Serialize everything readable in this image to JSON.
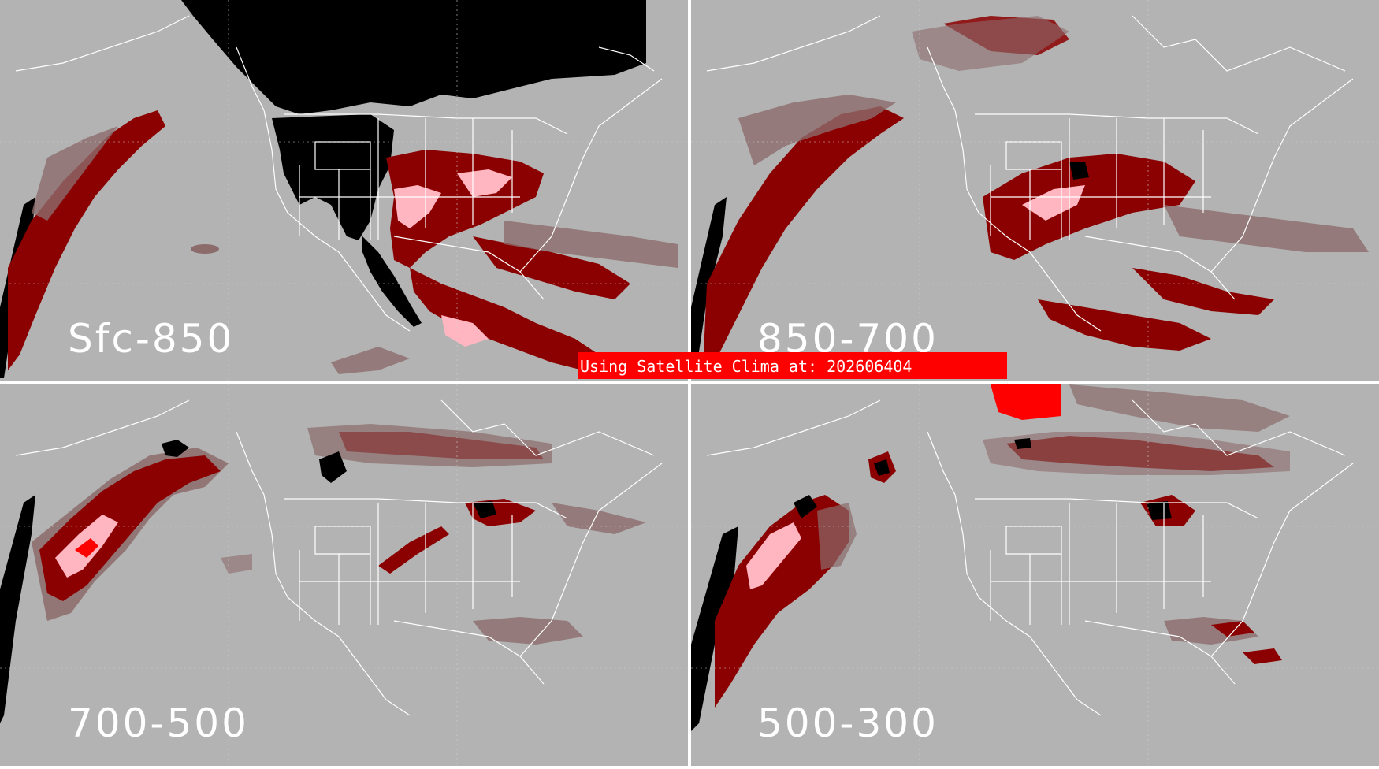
{
  "colors": {
    "background": "#b3b3b3",
    "border": "#ffffff",
    "outline": "#ffffff",
    "level_dark": "#000000",
    "level_deep_red": "#8b0000",
    "level_brownish": "#8c6b6b",
    "level_pink": "#ffb6c1",
    "level_bright_red": "#ff0000",
    "banner": "#ff0000"
  },
  "banner": {
    "text": "Using Satellite Clima at: 202606404"
  },
  "panels": [
    {
      "id": "sfc-850",
      "label": "Sfc-850"
    },
    {
      "id": "850-700",
      "label": "850-700"
    },
    {
      "id": "700-500",
      "label": "700-500"
    },
    {
      "id": "500-300",
      "label": "500-300"
    }
  ]
}
